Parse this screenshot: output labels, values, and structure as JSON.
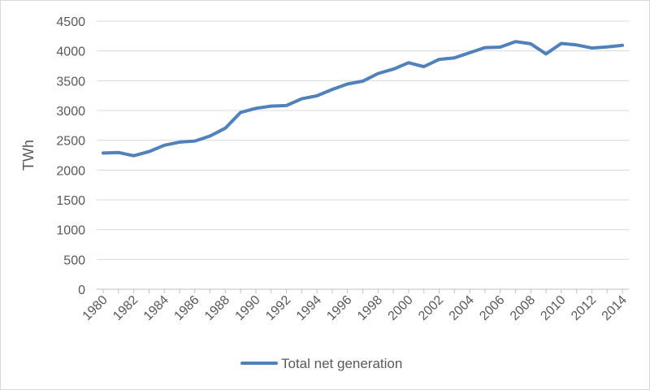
{
  "chart_data": {
    "type": "line",
    "title": "",
    "xlabel": "",
    "ylabel": "TWh",
    "ylim": [
      0,
      4500
    ],
    "y_ticks": [
      0,
      500,
      1000,
      1500,
      2000,
      2500,
      3000,
      3500,
      4000,
      4500
    ],
    "x_tick_labels": [
      "1980",
      "1982",
      "1984",
      "1986",
      "1988",
      "1990",
      "1992",
      "1994",
      "1996",
      "1998",
      "2000",
      "2002",
      "2004",
      "2006",
      "2008",
      "2010",
      "2012",
      "2014"
    ],
    "x": [
      1980,
      1981,
      1982,
      1983,
      1984,
      1985,
      1986,
      1987,
      1988,
      1989,
      1990,
      1991,
      1992,
      1993,
      1994,
      1995,
      1996,
      1997,
      1998,
      1999,
      2000,
      2001,
      2002,
      2003,
      2004,
      2005,
      2006,
      2007,
      2008,
      2009,
      2010,
      2011,
      2012,
      2013,
      2014
    ],
    "grid": true,
    "legend_position": "bottom",
    "series": [
      {
        "name": "Total net generation",
        "color": "#4f81bd",
        "values": [
          2286,
          2295,
          2241,
          2310,
          2416,
          2470,
          2487,
          2572,
          2704,
          2967,
          3037,
          3073,
          3083,
          3197,
          3247,
          3353,
          3444,
          3492,
          3620,
          3694,
          3802,
          3736,
          3858,
          3883,
          3970,
          4055,
          4064,
          4156,
          4119,
          3950,
          4125,
          4100,
          4048,
          4066,
          4093
        ]
      }
    ]
  }
}
